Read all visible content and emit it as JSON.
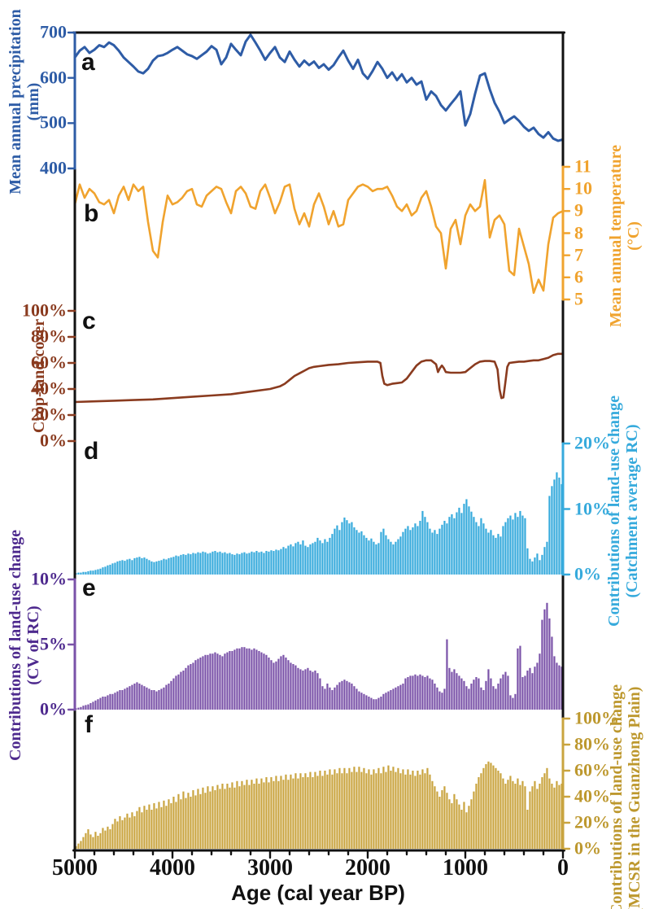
{
  "figure": {
    "x_axis": {
      "title": "Age (cal year BP)",
      "min": 0,
      "max": 5000,
      "reversed": true,
      "major_ticks": [
        5000,
        4000,
        3000,
        2000,
        1000,
        0
      ],
      "major_tick_labels": [
        "5000",
        "4000",
        "3000",
        "2000",
        "1000",
        "0"
      ],
      "minor_tick_interval": 200
    },
    "colors": {
      "precipitation": "#2e5ca6",
      "temperature": "#f0a32e",
      "cropland": "#8a3b1f",
      "catchment_rc": "#36aadc",
      "cv_rc_bars": "#7a52a8",
      "cv_rc_text": "#4e2a8e",
      "mcsr": "#c9a43f",
      "frame": "#111111"
    }
  },
  "chart_data": [
    {
      "id": "a",
      "panel_label": "a",
      "type": "line",
      "name": "Mean annual precipitation",
      "unit": "mm",
      "axis_side": "left",
      "axis_title_lines": [
        "Mean annual precipitation",
        "(mm)"
      ],
      "color": "#2e5ca6",
      "ylim": [
        400,
        700
      ],
      "yticks": {
        "values": [
          700,
          600,
          500,
          400
        ],
        "labels": [
          "700",
          "600",
          "500",
          "400"
        ]
      },
      "x_start": 5000,
      "x_step": -50,
      "values": [
        645,
        660,
        668,
        655,
        662,
        672,
        668,
        678,
        672,
        660,
        645,
        635,
        625,
        614,
        610,
        620,
        638,
        648,
        650,
        655,
        662,
        668,
        660,
        652,
        648,
        642,
        650,
        658,
        670,
        662,
        630,
        645,
        675,
        662,
        650,
        680,
        695,
        678,
        660,
        640,
        655,
        668,
        645,
        635,
        658,
        640,
        625,
        638,
        628,
        636,
        622,
        630,
        618,
        628,
        645,
        660,
        638,
        620,
        640,
        610,
        598,
        615,
        635,
        620,
        600,
        612,
        595,
        608,
        590,
        600,
        585,
        592,
        552,
        570,
        560,
        540,
        528,
        542,
        555,
        570,
        495,
        520,
        565,
        605,
        610,
        575,
        545,
        525,
        500,
        508,
        515,
        505,
        492,
        483,
        490,
        476,
        468,
        480,
        466,
        461,
        464
      ]
    },
    {
      "id": "b",
      "panel_label": "b",
      "type": "line",
      "name": "Mean annual temperature",
      "unit": "°C",
      "axis_side": "right",
      "axis_title_lines": [
        "Mean annual temperature",
        "(°C)"
      ],
      "color": "#f0a32e",
      "ylim": [
        5,
        11
      ],
      "yticks": {
        "values": [
          11,
          10,
          9,
          8,
          7,
          6,
          5
        ],
        "labels": [
          "11",
          "10",
          "9",
          "8",
          "7",
          "6",
          "5"
        ]
      },
      "x_start": 5000,
      "x_step": -50,
      "values": [
        9.3,
        10.2,
        9.6,
        10.0,
        9.8,
        9.4,
        9.3,
        9.5,
        8.9,
        9.7,
        10.1,
        9.5,
        10.2,
        9.9,
        10.1,
        8.5,
        7.2,
        6.9,
        8.5,
        9.7,
        9.3,
        9.4,
        9.6,
        9.9,
        10.0,
        9.3,
        9.2,
        9.7,
        9.9,
        10.1,
        10.0,
        9.4,
        8.9,
        9.9,
        10.1,
        9.8,
        9.2,
        9.1,
        9.9,
        10.2,
        9.6,
        8.9,
        9.4,
        10.1,
        10.2,
        9.1,
        8.4,
        8.9,
        8.3,
        9.3,
        9.8,
        9.2,
        8.4,
        9.0,
        8.3,
        8.4,
        9.5,
        9.8,
        10.1,
        10.2,
        10.1,
        9.9,
        10.0,
        10.0,
        10.1,
        9.7,
        9.2,
        9.0,
        9.3,
        8.8,
        9.0,
        9.6,
        9.9,
        9.2,
        8.3,
        8.0,
        6.4,
        8.2,
        8.6,
        7.5,
        8.8,
        9.3,
        9.0,
        9.2,
        10.4,
        7.8,
        8.6,
        8.8,
        8.4,
        6.3,
        6.1,
        8.2,
        7.4,
        6.6,
        5.3,
        5.9,
        5.4,
        7.5,
        8.7,
        8.9,
        9.0
      ]
    },
    {
      "id": "c",
      "panel_label": "c",
      "type": "line",
      "name": "Crop-land cover",
      "unit": "%",
      "axis_side": "left",
      "axis_title_lines": [
        "Crop-land cover"
      ],
      "color": "#8a3b1f",
      "ylim": [
        0,
        100
      ],
      "yticks": {
        "values": [
          100,
          80,
          60,
          40,
          20,
          0
        ],
        "labels": [
          "100%",
          "80%",
          "60%",
          "40%",
          "20%",
          "0%"
        ]
      },
      "x": [
        5000,
        4800,
        4600,
        4400,
        4200,
        4000,
        3800,
        3600,
        3400,
        3200,
        3000,
        2900,
        2850,
        2800,
        2750,
        2700,
        2650,
        2600,
        2550,
        2500,
        2400,
        2300,
        2200,
        2100,
        2000,
        1950,
        1900,
        1870,
        1850,
        1830,
        1800,
        1750,
        1700,
        1650,
        1600,
        1550,
        1500,
        1450,
        1400,
        1350,
        1300,
        1280,
        1260,
        1240,
        1220,
        1200,
        1150,
        1100,
        1050,
        1000,
        950,
        900,
        850,
        800,
        750,
        700,
        670,
        650,
        630,
        610,
        590,
        570,
        550,
        500,
        450,
        400,
        350,
        300,
        250,
        200,
        150,
        100,
        50,
        0
      ],
      "y": [
        30,
        30.5,
        31,
        31.5,
        32,
        33,
        34,
        35,
        36,
        38,
        40,
        42,
        44,
        47,
        50,
        52,
        54,
        56,
        57,
        57.5,
        58.5,
        59,
        60,
        60.5,
        61,
        61,
        61,
        60,
        50,
        44,
        43,
        44,
        44.5,
        45,
        48,
        53,
        58,
        61,
        62,
        62,
        59,
        53,
        56,
        58,
        56,
        53,
        52.5,
        52.5,
        52.5,
        53,
        56,
        59,
        61,
        61.5,
        61.5,
        61,
        55,
        40,
        33,
        33.5,
        45,
        57,
        60,
        60.5,
        61,
        61,
        61.5,
        62,
        62,
        63,
        64,
        66,
        67,
        67
      ]
    },
    {
      "id": "d",
      "panel_label": "d",
      "type": "bar",
      "name": "Contributions of land-use change (Catchment average RC)",
      "unit": "%",
      "axis_side": "right",
      "axis_title_lines": [
        "Contributions of land-use change",
        "(Catchment average RC)"
      ],
      "color": "#36aadc",
      "ylim": [
        0,
        20
      ],
      "yticks": {
        "values": [
          20,
          10,
          0
        ],
        "labels": [
          "20%",
          "10%",
          "0%"
        ]
      },
      "x_start": 4988,
      "x_step": -25,
      "values": [
        0.2,
        0.3,
        0.3,
        0.4,
        0.4,
        0.5,
        0.6,
        0.6,
        0.7,
        0.8,
        0.9,
        1.1,
        1.2,
        1.4,
        1.5,
        1.7,
        1.8,
        2.0,
        2.1,
        2.2,
        2.1,
        2.3,
        2.4,
        2.2,
        2.5,
        2.6,
        2.7,
        2.5,
        2.6,
        2.4,
        2.2,
        2.0,
        1.9,
        2.0,
        2.1,
        2.2,
        2.4,
        2.3,
        2.5,
        2.6,
        2.7,
        2.9,
        2.8,
        3.0,
        3.1,
        3.0,
        3.2,
        3.1,
        3.3,
        3.2,
        3.4,
        3.3,
        3.5,
        3.4,
        3.2,
        3.3,
        3.5,
        3.6,
        3.4,
        3.5,
        3.3,
        3.4,
        3.2,
        3.3,
        3.1,
        3.0,
        3.2,
        3.1,
        3.3,
        3.4,
        3.2,
        3.3,
        3.5,
        3.4,
        3.6,
        3.4,
        3.5,
        3.3,
        3.6,
        3.5,
        3.7,
        3.6,
        3.8,
        3.7,
        3.9,
        4.2,
        4.0,
        4.4,
        4.6,
        4.3,
        4.8,
        5.0,
        4.6,
        5.2,
        4.4,
        4.2,
        4.6,
        4.8,
        5.0,
        5.6,
        5.2,
        4.8,
        5.4,
        5.0,
        5.6,
        6.2,
        7.0,
        7.5,
        6.8,
        8.0,
        8.7,
        8.3,
        7.8,
        8.0,
        7.2,
        6.8,
        6.4,
        6.6,
        6.0,
        5.6,
        5.2,
        5.5,
        5.0,
        4.6,
        4.8,
        6.5,
        7.0,
        6.0,
        5.4,
        5.0,
        4.6,
        5.0,
        5.4,
        5.8,
        6.5,
        7.0,
        7.4,
        6.8,
        7.2,
        7.8,
        7.4,
        8.2,
        9.7,
        8.8,
        8.0,
        7.0,
        6.4,
        6.8,
        6.2,
        7.0,
        7.6,
        8.2,
        7.8,
        8.8,
        9.2,
        8.6,
        9.5,
        10.2,
        9.4,
        10.8,
        11.5,
        10.4,
        9.6,
        8.8,
        8.0,
        7.4,
        8.6,
        7.8,
        7.0,
        6.4,
        6.8,
        6.0,
        5.6,
        6.2,
        5.8,
        7.4,
        8.0,
        8.6,
        9.0,
        8.4,
        9.4,
        8.8,
        9.7,
        9.0,
        8.6,
        4.0,
        2.4,
        2.0,
        2.6,
        3.2,
        2.2,
        3.0,
        4.2,
        5.0,
        12.0,
        13.5,
        14.5,
        15.6,
        14.8,
        13.8
      ]
    },
    {
      "id": "e",
      "panel_label": "e",
      "type": "bar",
      "name": "Contributions of land-use change (CV of RC)",
      "unit": "%",
      "axis_side": "left",
      "axis_title_lines": [
        "Contributions of land-use change",
        "(CV of RC)"
      ],
      "color": "#7a52a8",
      "text_color": "#4e2a8e",
      "ylim": [
        0,
        10
      ],
      "yticks": {
        "values": [
          10,
          5,
          0
        ],
        "labels": [
          "10%",
          "5%",
          "0%"
        ]
      },
      "x_start": 4988,
      "x_step": -25,
      "values": [
        0.1,
        0.15,
        0.2,
        0.3,
        0.35,
        0.4,
        0.5,
        0.6,
        0.7,
        0.8,
        0.9,
        1.0,
        1.0,
        1.1,
        1.2,
        1.2,
        1.3,
        1.4,
        1.5,
        1.5,
        1.6,
        1.7,
        1.8,
        1.9,
        2.0,
        2.1,
        2.0,
        1.9,
        1.8,
        1.7,
        1.6,
        1.5,
        1.5,
        1.4,
        1.5,
        1.6,
        1.7,
        1.9,
        2.0,
        2.2,
        2.4,
        2.6,
        2.7,
        2.9,
        3.0,
        3.2,
        3.4,
        3.5,
        3.6,
        3.8,
        3.9,
        4.0,
        4.1,
        4.2,
        4.2,
        4.3,
        4.3,
        4.4,
        4.3,
        4.2,
        4.1,
        4.3,
        4.4,
        4.5,
        4.5,
        4.6,
        4.7,
        4.7,
        4.8,
        4.8,
        4.7,
        4.7,
        4.6,
        4.7,
        4.6,
        4.5,
        4.4,
        4.3,
        4.2,
        4.0,
        3.8,
        3.6,
        3.7,
        3.9,
        4.1,
        4.2,
        4.0,
        3.8,
        3.6,
        3.5,
        3.4,
        3.2,
        3.1,
        3.0,
        3.1,
        3.2,
        3.0,
        2.9,
        3.0,
        2.8,
        2.4,
        1.8,
        1.6,
        2.0,
        1.7,
        1.5,
        1.7,
        1.9,
        2.1,
        2.2,
        2.3,
        2.2,
        2.1,
        2.0,
        1.8,
        1.6,
        1.4,
        1.3,
        1.2,
        1.1,
        1.0,
        0.9,
        0.8,
        0.8,
        0.9,
        1.0,
        1.2,
        1.3,
        1.4,
        1.5,
        1.6,
        1.7,
        1.8,
        1.9,
        2.0,
        2.4,
        2.5,
        2.6,
        2.6,
        2.7,
        2.6,
        2.7,
        2.6,
        2.5,
        2.6,
        2.4,
        2.3,
        2.0,
        1.7,
        1.4,
        1.3,
        1.6,
        5.4,
        3.2,
        2.9,
        3.1,
        2.8,
        2.6,
        2.4,
        2.2,
        1.8,
        1.6,
        2.0,
        2.3,
        2.5,
        2.4,
        1.7,
        1.5,
        2.2,
        3.1,
        2.4,
        1.8,
        1.6,
        2.0,
        2.4,
        2.7,
        2.9,
        2.6,
        1.1,
        0.9,
        1.2,
        4.7,
        4.9,
        2.5,
        2.6,
        3.0,
        3.2,
        2.8,
        3.3,
        3.6,
        4.3,
        6.9,
        7.7,
        8.2,
        7.0,
        5.6,
        4.1,
        3.6,
        3.4,
        3.3
      ]
    },
    {
      "id": "f",
      "panel_label": "f",
      "type": "bar",
      "name": "Contributions of land-use change (MCSR in the Guanzhong Plain)",
      "unit": "%",
      "axis_side": "right",
      "axis_title_lines": [
        "Contributions of land-use change",
        "(MCSR in the Guanzhong Plain)"
      ],
      "color": "#c9a43f",
      "text_color": "#bd982e",
      "ylim": [
        0,
        100
      ],
      "yticks": {
        "values": [
          100,
          80,
          60,
          40,
          20,
          0
        ],
        "labels": [
          "100%",
          "80%",
          "60%",
          "40%",
          "20%",
          "0%"
        ]
      },
      "x_start": 4988,
      "x_step": -25,
      "values": [
        2,
        4,
        6,
        9,
        12,
        15,
        11,
        9,
        13,
        10,
        12,
        16,
        14,
        17,
        15,
        19,
        23,
        21,
        25,
        22,
        24,
        27,
        24,
        28,
        25,
        29,
        32,
        28,
        33,
        30,
        34,
        30,
        35,
        31,
        36,
        32,
        37,
        33,
        38,
        35,
        40,
        36,
        42,
        38,
        44,
        39,
        43,
        40,
        45,
        41,
        46,
        42,
        47,
        43,
        48,
        44,
        48,
        45,
        49,
        46,
        50,
        46,
        50,
        47,
        51,
        47,
        52,
        48,
        52,
        49,
        53,
        49,
        53,
        50,
        54,
        50,
        54,
        51,
        55,
        51,
        55,
        52,
        56,
        52,
        56,
        53,
        57,
        53,
        57,
        54,
        58,
        54,
        58,
        55,
        58,
        55,
        59,
        55,
        59,
        56,
        60,
        56,
        60,
        57,
        61,
        57,
        61,
        58,
        62,
        58,
        62,
        58,
        62,
        59,
        63,
        59,
        63,
        59,
        62,
        58,
        61,
        57,
        61,
        58,
        62,
        58,
        63,
        59,
        64,
        60,
        63,
        59,
        62,
        58,
        61,
        57,
        61,
        57,
        60,
        56,
        60,
        57,
        61,
        58,
        62,
        57,
        52,
        48,
        44,
        40,
        45,
        48,
        43,
        38,
        35,
        42,
        38,
        34,
        30,
        36,
        28,
        33,
        38,
        44,
        50,
        55,
        58,
        62,
        65,
        67,
        66,
        64,
        62,
        60,
        58,
        54,
        50,
        53,
        56,
        52,
        50,
        54,
        49,
        52,
        48,
        30,
        44,
        48,
        52,
        46,
        50,
        55,
        58,
        62,
        54,
        50,
        47,
        52,
        49,
        50
      ]
    }
  ]
}
